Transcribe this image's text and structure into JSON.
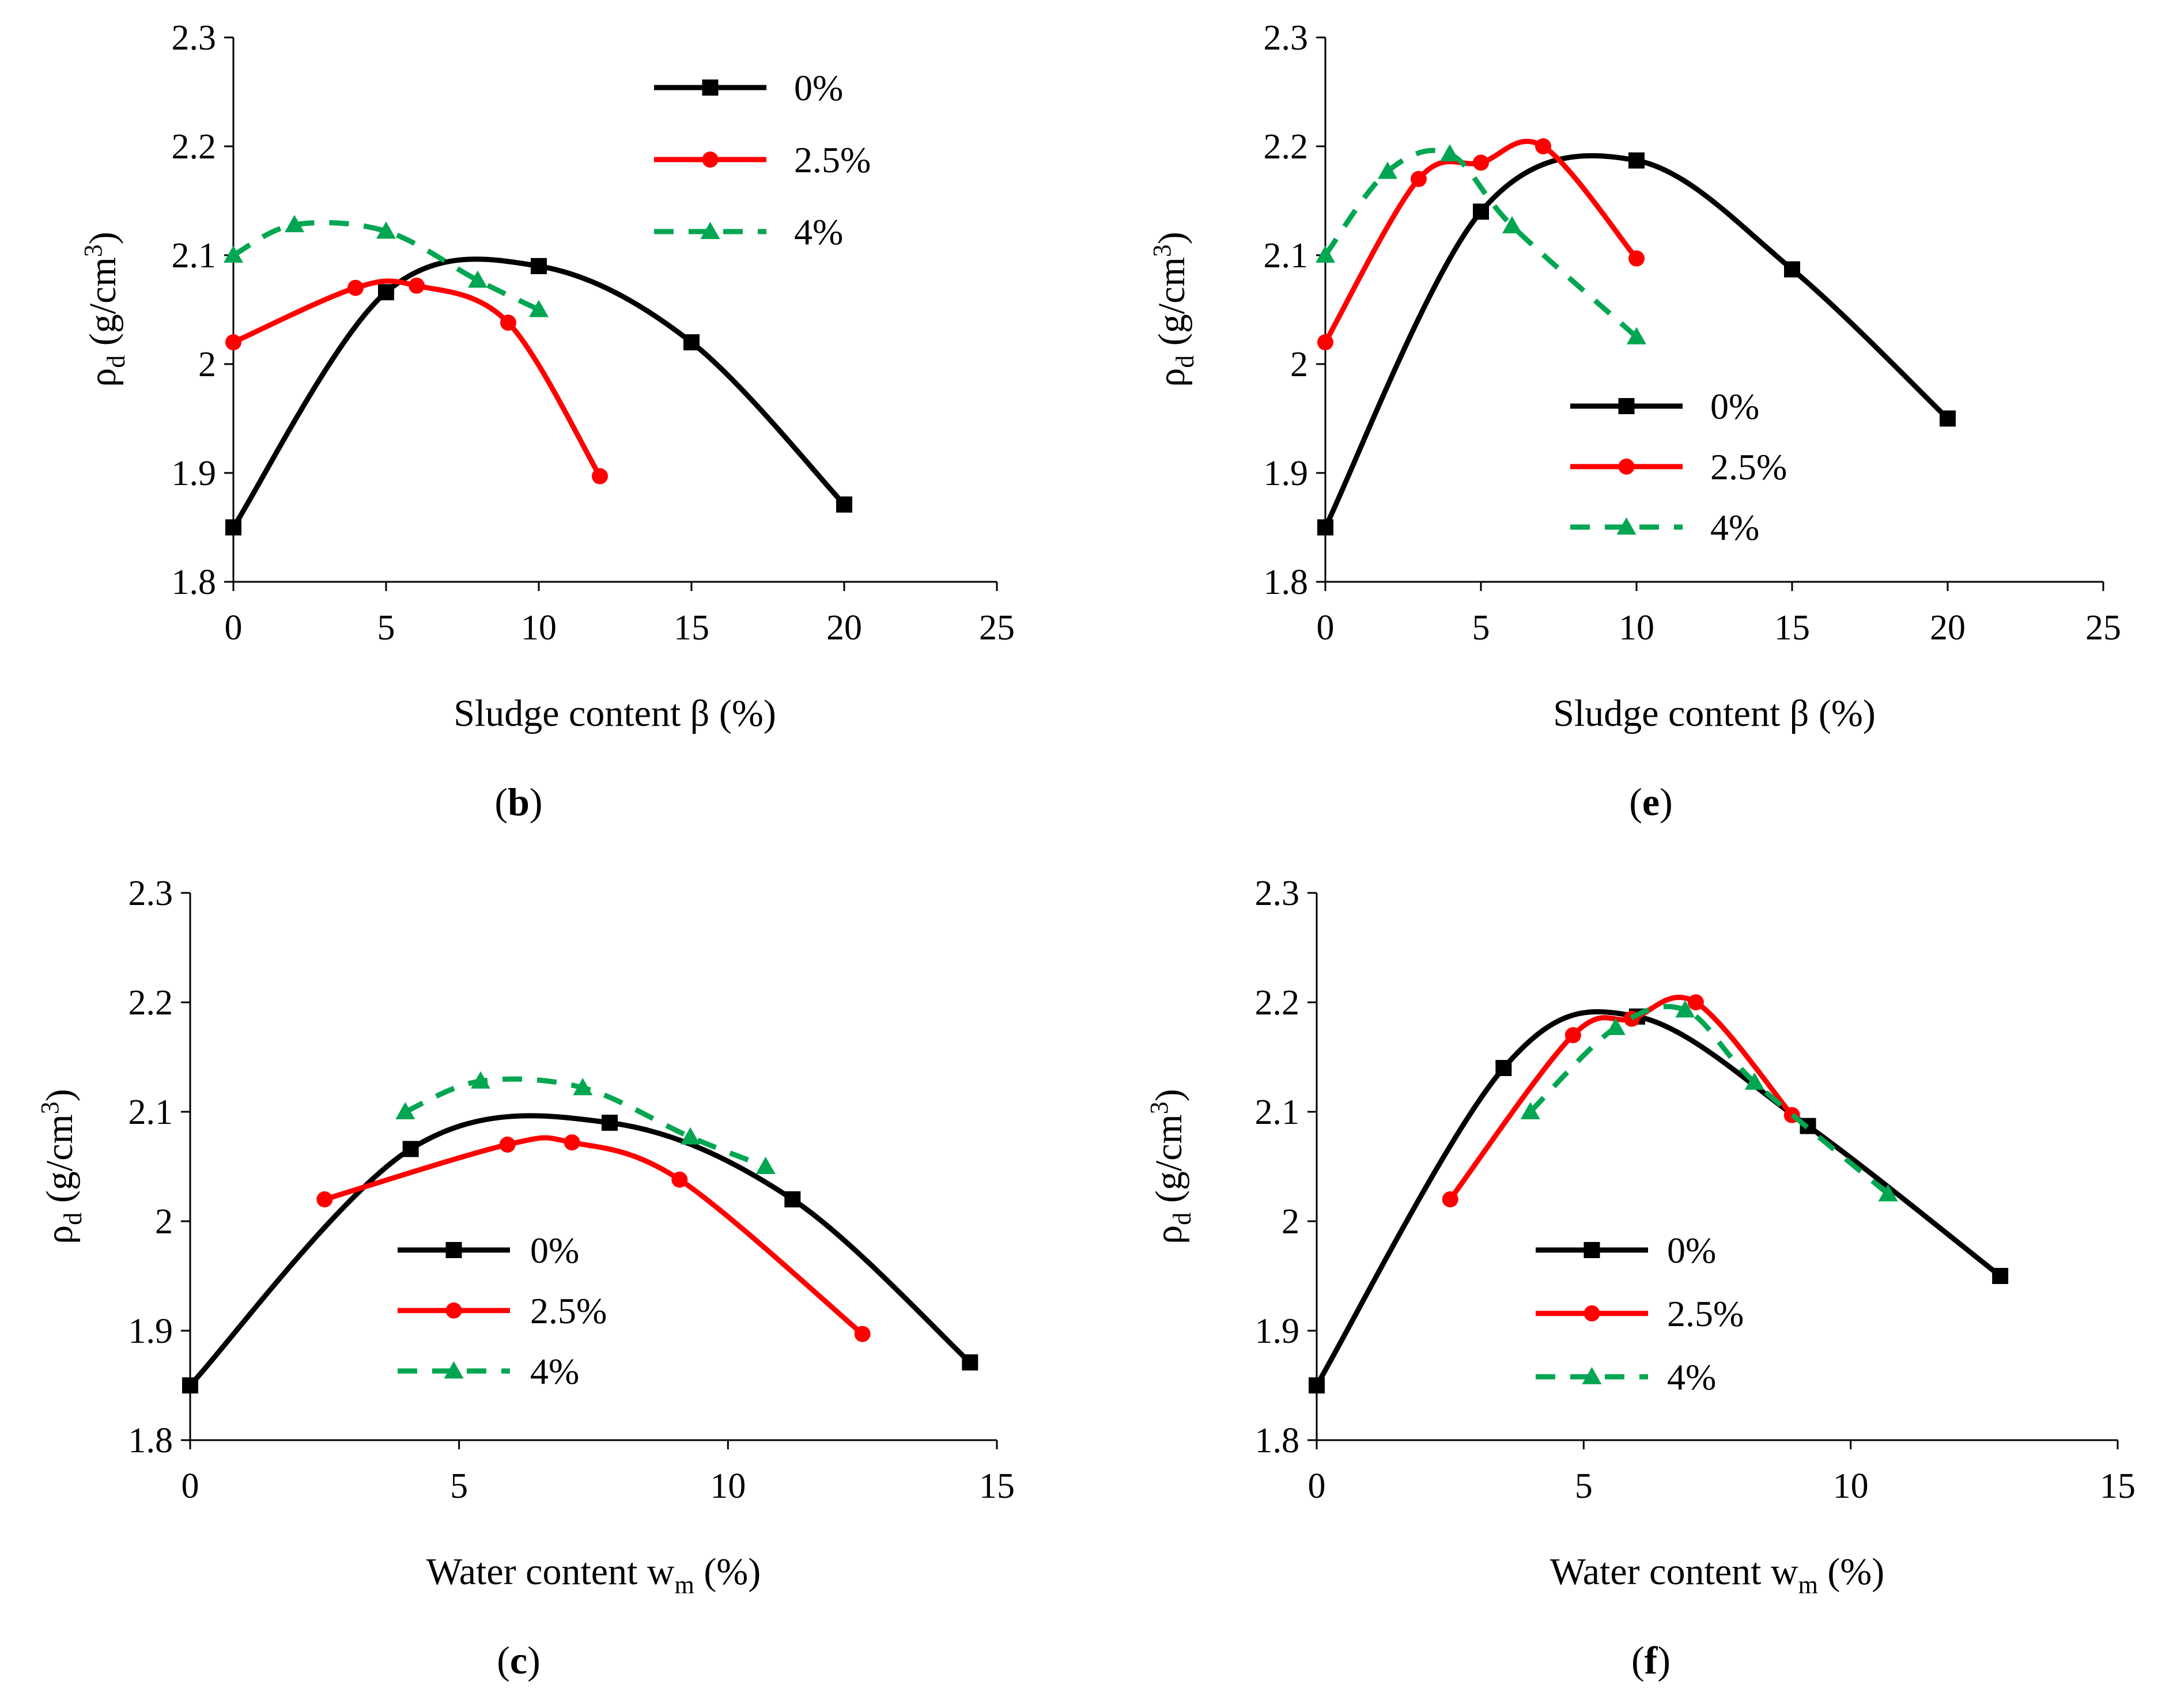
{
  "colors": {
    "s0": "#000000",
    "s25": "#ff0000",
    "s4": "#00a651"
  },
  "chart_data": [
    {
      "panel": "b",
      "type": "line",
      "caption": "(b)",
      "caption_letter": "b",
      "xlabel": "Sludge content β (%)",
      "ylabel": {
        "rho": "ρ",
        "sub": "d",
        "unit": " (g/cm",
        "sup": "3",
        "close": ")"
      },
      "xlim": [
        0,
        25
      ],
      "ylim": [
        1.8,
        2.3
      ],
      "xticks": [
        "0",
        "5",
        "10",
        "15",
        "20",
        "25"
      ],
      "yticks": [
        "1.8",
        "1.9",
        "2",
        "2.1",
        "2.2",
        "2.3"
      ],
      "legend_position": "top-right",
      "series": [
        {
          "name": "0%",
          "marker": "square",
          "style": "solid",
          "x": [
            0,
            5,
            10,
            15,
            20
          ],
          "y": [
            1.85,
            2.066,
            2.09,
            2.02,
            1.871
          ]
        },
        {
          "name": "2.5%",
          "marker": "circle",
          "style": "solid",
          "x": [
            0,
            4,
            6,
            9,
            12
          ],
          "y": [
            2.02,
            2.07,
            2.072,
            2.038,
            1.897
          ]
        },
        {
          "name": "4%",
          "marker": "triangle",
          "style": "dashed",
          "x": [
            0,
            2,
            5,
            8,
            10
          ],
          "y": [
            2.1,
            2.128,
            2.122,
            2.077,
            2.05
          ]
        }
      ]
    },
    {
      "panel": "e",
      "type": "line",
      "caption": "(e)",
      "caption_letter": "e",
      "xlabel": "Sludge content β (%)",
      "ylabel": {
        "rho": "ρ",
        "sub": "d",
        "unit": " (g/cm",
        "sup": "3",
        "close": ")"
      },
      "xlim": [
        0,
        25
      ],
      "ylim": [
        1.8,
        2.3
      ],
      "xticks": [
        "0",
        "5",
        "10",
        "15",
        "20",
        "25"
      ],
      "yticks": [
        "1.8",
        "1.9",
        "2",
        "2.1",
        "2.2",
        "2.3"
      ],
      "legend_position": "middle-right",
      "series": [
        {
          "name": "0%",
          "marker": "square",
          "style": "solid",
          "x": [
            0,
            5,
            10,
            15,
            20
          ],
          "y": [
            1.85,
            2.14,
            2.187,
            2.087,
            1.95
          ]
        },
        {
          "name": "2.5%",
          "marker": "circle",
          "style": "solid",
          "x": [
            0,
            3,
            5,
            7,
            10
          ],
          "y": [
            2.02,
            2.17,
            2.185,
            2.2,
            2.097
          ]
        },
        {
          "name": "4%",
          "marker": "triangle",
          "style": "dashed",
          "x": [
            0,
            2,
            4,
            6,
            10
          ],
          "y": [
            2.1,
            2.177,
            2.193,
            2.127,
            2.025
          ]
        }
      ]
    },
    {
      "panel": "c",
      "type": "line",
      "caption": "(c)",
      "caption_letter": "c",
      "xlabel": "Water content w",
      "xlabel_sub": "m",
      "xlabel_tail": " (%)",
      "ylabel": {
        "rho": "ρ",
        "sub": "d",
        "unit": " (g/cm",
        "sup": "3",
        "close": ")"
      },
      "xlim": [
        0,
        15
      ],
      "ylim": [
        1.8,
        2.3
      ],
      "xticks": [
        "0",
        "5",
        "10",
        "15"
      ],
      "yticks": [
        "1.8",
        "1.9",
        "2",
        "2.1",
        "2.2",
        "2.3"
      ],
      "legend_position": "lower-middle",
      "series": [
        {
          "name": "0%",
          "marker": "square",
          "style": "solid",
          "x": [
            0,
            4.1,
            7.8,
            11.2,
            14.5
          ],
          "y": [
            1.85,
            2.066,
            2.09,
            2.02,
            1.871
          ]
        },
        {
          "name": "2.5%",
          "marker": "circle",
          "style": "solid",
          "x": [
            2.5,
            5.9,
            7.1,
            9.1,
            12.5
          ],
          "y": [
            2.02,
            2.07,
            2.072,
            2.038,
            1.897
          ]
        },
        {
          "name": "4%",
          "marker": "triangle",
          "style": "dashed",
          "x": [
            4.0,
            5.4,
            7.3,
            9.3,
            10.7
          ],
          "y": [
            2.1,
            2.128,
            2.122,
            2.077,
            2.05
          ]
        }
      ]
    },
    {
      "panel": "f",
      "type": "line",
      "caption": "(f)",
      "caption_letter": "f",
      "xlabel": "Water content w",
      "xlabel_sub": "m",
      "xlabel_tail": " (%)",
      "ylabel": {
        "rho": "ρ",
        "sub": "d",
        "unit": " (g/cm",
        "sup": "3",
        "close": ")"
      },
      "xlim": [
        0,
        15
      ],
      "ylim": [
        1.8,
        2.3
      ],
      "xticks": [
        "0",
        "5",
        "10",
        "15"
      ],
      "yticks": [
        "1.8",
        "1.9",
        "2",
        "2.1",
        "2.2",
        "2.3"
      ],
      "legend_position": "lower-middle",
      "series": [
        {
          "name": "0%",
          "marker": "square",
          "style": "solid",
          "x": [
            0,
            3.5,
            6.0,
            9.2,
            12.8
          ],
          "y": [
            1.85,
            2.14,
            2.187,
            2.087,
            1.95
          ]
        },
        {
          "name": "2.5%",
          "marker": "circle",
          "style": "solid",
          "x": [
            2.5,
            4.8,
            5.9,
            7.1,
            8.9
          ],
          "y": [
            2.02,
            2.17,
            2.185,
            2.2,
            2.097
          ]
        },
        {
          "name": "4%",
          "marker": "triangle",
          "style": "dashed",
          "x": [
            4.0,
            5.6,
            6.9,
            8.2,
            10.7
          ],
          "y": [
            2.1,
            2.177,
            2.193,
            2.127,
            2.025
          ]
        }
      ]
    }
  ]
}
